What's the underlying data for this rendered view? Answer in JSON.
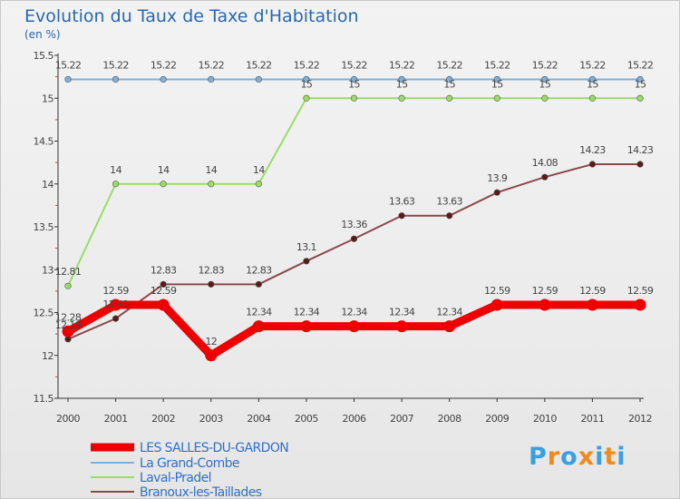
{
  "chart_data": {
    "type": "line",
    "title": "Evolution du Taux de Taxe d'Habitation",
    "subtitle": "(en %)",
    "xlabel": "",
    "ylabel": "",
    "ylim": [
      11.5,
      15.5
    ],
    "yticks": [
      "11.5",
      "12",
      "12.5",
      "13",
      "13.5",
      "14",
      "14.5",
      "15",
      "15.5"
    ],
    "categories": [
      "2000",
      "2001",
      "2002",
      "2003",
      "2004",
      "2005",
      "2006",
      "2007",
      "2008",
      "2009",
      "2010",
      "2011",
      "2012"
    ],
    "series": [
      {
        "name": "LES SALLES-DU-GARDON",
        "color": "#ee0000",
        "values": [
          12.28,
          12.59,
          12.59,
          12,
          12.34,
          12.34,
          12.34,
          12.34,
          12.34,
          12.59,
          12.59,
          12.59,
          12.59
        ],
        "labels": [
          "12.28",
          "12.59",
          "12.59",
          "12",
          "12.34",
          "12.34",
          "12.34",
          "12.34",
          "12.34",
          "12.59",
          "12.59",
          "12.59",
          "12.59"
        ]
      },
      {
        "name": "La Grand-Combe",
        "color": "#7fb0d8",
        "values": [
          15.22,
          15.22,
          15.22,
          15.22,
          15.22,
          15.22,
          15.22,
          15.22,
          15.22,
          15.22,
          15.22,
          15.22,
          15.22
        ],
        "labels": [
          "15.22",
          "15.22",
          "15.22",
          "15.22",
          "15.22",
          "15.22",
          "15.22",
          "15.22",
          "15.22",
          "15.22",
          "15.22",
          "15.22",
          "15.22"
        ]
      },
      {
        "name": "Laval-Pradel",
        "color": "#99dd66",
        "values": [
          12.81,
          14,
          14,
          14,
          14,
          15,
          15,
          15,
          15,
          15,
          15,
          15,
          15
        ],
        "labels": [
          "12.81",
          "14",
          "14",
          "14",
          "14",
          "15",
          "15",
          "15",
          "15",
          "15",
          "15",
          "15",
          "15"
        ]
      },
      {
        "name": "Branoux-les-Taillades",
        "color": "#8b4a4a",
        "values": [
          12.19,
          12.43,
          12.83,
          12.83,
          12.83,
          13.1,
          13.36,
          13.63,
          13.63,
          13.9,
          14.08,
          14.23,
          14.23
        ],
        "labels": [
          "12.19",
          "12.43",
          "12.83",
          "12.83",
          "12.83",
          "13.1",
          "13.36",
          "13.63",
          "13.63",
          "13.9",
          "14.08",
          "14.23",
          "14.23"
        ]
      }
    ],
    "legend_position": "bottom-left",
    "grid": false
  },
  "logo": {
    "letters": [
      "P",
      "r",
      "o",
      "x",
      "i",
      "t",
      "i"
    ],
    "colors": [
      "#3aa0e0",
      "#f08a1c",
      "#3aa0e0",
      "#f08a1c",
      "#3aa0e0",
      "#f08a1c",
      "#3aa0e0"
    ]
  }
}
